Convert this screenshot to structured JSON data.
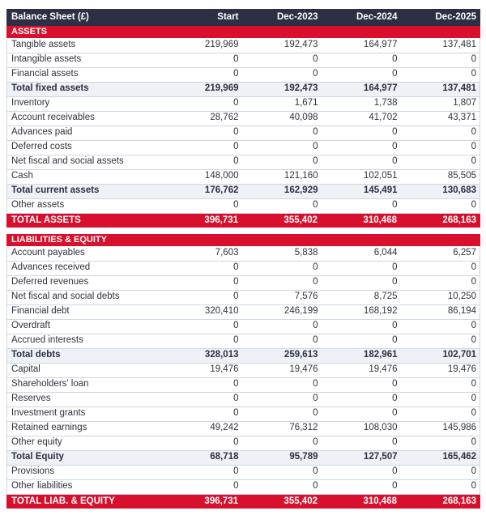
{
  "table": {
    "title": "Balance Sheet (£)",
    "columns": [
      "Start",
      "Dec-2023",
      "Dec-2024",
      "Dec-2025"
    ],
    "sections": [
      {
        "name": "ASSETS",
        "rows": [
          {
            "label": "Tangible assets",
            "type": "data",
            "values": [
              "219,969",
              "192,473",
              "164,977",
              "137,481"
            ]
          },
          {
            "label": "Intangible assets",
            "type": "data",
            "values": [
              "0",
              "0",
              "0",
              "0"
            ]
          },
          {
            "label": "Financial assets",
            "type": "data",
            "values": [
              "0",
              "0",
              "0",
              "0"
            ]
          },
          {
            "label": "Total fixed assets",
            "type": "subtotal",
            "values": [
              "219,969",
              "192,473",
              "164,977",
              "137,481"
            ]
          },
          {
            "label": "Inventory",
            "type": "data",
            "values": [
              "0",
              "1,671",
              "1,738",
              "1,807"
            ]
          },
          {
            "label": "Account receivables",
            "type": "data",
            "values": [
              "28,762",
              "40,098",
              "41,702",
              "43,371"
            ]
          },
          {
            "label": "Advances paid",
            "type": "data",
            "values": [
              "0",
              "0",
              "0",
              "0"
            ]
          },
          {
            "label": "Deferred costs",
            "type": "data",
            "values": [
              "0",
              "0",
              "0",
              "0"
            ]
          },
          {
            "label": "Net fiscal and social assets",
            "type": "data",
            "values": [
              "0",
              "0",
              "0",
              "0"
            ]
          },
          {
            "label": "Cash",
            "type": "data",
            "values": [
              "148,000",
              "121,160",
              "102,051",
              "85,505"
            ]
          },
          {
            "label": "Total current assets",
            "type": "subtotal",
            "values": [
              "176,762",
              "162,929",
              "145,491",
              "130,683"
            ]
          },
          {
            "label": "Other assets",
            "type": "data",
            "values": [
              "0",
              "0",
              "0",
              "0"
            ]
          },
          {
            "label": "TOTAL ASSETS",
            "type": "total",
            "values": [
              "396,731",
              "355,402",
              "310,468",
              "268,163"
            ]
          }
        ]
      },
      {
        "name": "LIABILITIES & EQUITY",
        "rows": [
          {
            "label": "Account payables",
            "type": "data",
            "values": [
              "7,603",
              "5,838",
              "6,044",
              "6,257"
            ]
          },
          {
            "label": "Advances received",
            "type": "data",
            "values": [
              "0",
              "0",
              "0",
              "0"
            ]
          },
          {
            "label": "Deferred revenues",
            "type": "data",
            "values": [
              "0",
              "0",
              "0",
              "0"
            ]
          },
          {
            "label": "Net fiscal and social debts",
            "type": "data",
            "values": [
              "0",
              "7,576",
              "8,725",
              "10,250"
            ]
          },
          {
            "label": "Financial debt",
            "type": "data",
            "values": [
              "320,410",
              "246,199",
              "168,192",
              "86,194"
            ]
          },
          {
            "label": "Overdraft",
            "type": "data",
            "values": [
              "0",
              "0",
              "0",
              "0"
            ]
          },
          {
            "label": "Accrued interests",
            "type": "data",
            "values": [
              "0",
              "0",
              "0",
              "0"
            ]
          },
          {
            "label": "Total debts",
            "type": "subtotal",
            "values": [
              "328,013",
              "259,613",
              "182,961",
              "102,701"
            ]
          },
          {
            "label": "Capital",
            "type": "data",
            "values": [
              "19,476",
              "19,476",
              "19,476",
              "19,476"
            ]
          },
          {
            "label": "Shareholders' loan",
            "type": "data",
            "values": [
              "0",
              "0",
              "0",
              "0"
            ]
          },
          {
            "label": "Reserves",
            "type": "data",
            "values": [
              "0",
              "0",
              "0",
              "0"
            ]
          },
          {
            "label": "Investment grants",
            "type": "data",
            "values": [
              "0",
              "0",
              "0",
              "0"
            ]
          },
          {
            "label": "Retained earnings",
            "type": "data",
            "values": [
              "49,242",
              "76,312",
              "108,030",
              "145,986"
            ]
          },
          {
            "label": "Other equity",
            "type": "data",
            "values": [
              "0",
              "0",
              "0",
              "0"
            ]
          },
          {
            "label": "Total Equity",
            "type": "subtotal",
            "values": [
              "68,718",
              "95,789",
              "127,507",
              "165,462"
            ]
          },
          {
            "label": "Provisions",
            "type": "data",
            "values": [
              "0",
              "0",
              "0",
              "0"
            ]
          },
          {
            "label": "Other liabilities",
            "type": "data",
            "values": [
              "0",
              "0",
              "0",
              "0"
            ]
          },
          {
            "label": "TOTAL LIAB. & EQUITY",
            "type": "total",
            "values": [
              "396,731",
              "355,402",
              "310,468",
              "268,163"
            ]
          }
        ]
      }
    ]
  },
  "colors": {
    "header_bg": "#2d2f44",
    "accent_red": "#d8102d",
    "subtotal_bg": "#eef1f6",
    "border": "#cdd6e2",
    "text": "#31323e"
  }
}
